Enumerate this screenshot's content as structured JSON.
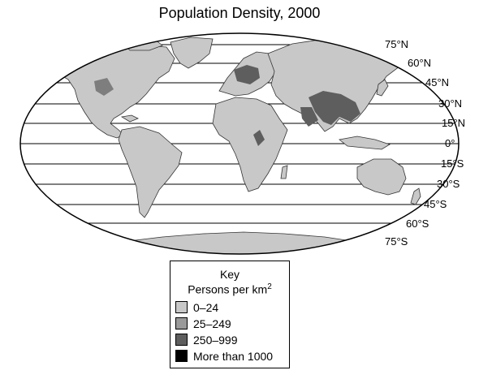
{
  "title": "Population Density, 2000",
  "latitude_labels": [
    {
      "label": "75°N"
    },
    {
      "label": "60°N"
    },
    {
      "label": "45°N"
    },
    {
      "label": "30°N"
    },
    {
      "label": "15°N"
    },
    {
      "label": "0°"
    },
    {
      "label": "15°S"
    },
    {
      "label": "30°S"
    },
    {
      "label": "45°S"
    },
    {
      "label": "60°S"
    },
    {
      "label": "75°S"
    }
  ],
  "key": {
    "title": "Key",
    "subtitle_main": "Persons per km",
    "subtitle_sup": "2",
    "items": [
      {
        "label": "0–24",
        "color": "#c8c8c8"
      },
      {
        "label": "25–249",
        "color": "#9a9a9a"
      },
      {
        "label": "250–999",
        "color": "#5e5e5e"
      },
      {
        "label": "More than 1000",
        "color": "#000000"
      }
    ]
  },
  "colors": {
    "land": "#c8c8c8",
    "dense": "#5e5e5e",
    "ocean": "#ffffff",
    "outline": "#000000"
  }
}
